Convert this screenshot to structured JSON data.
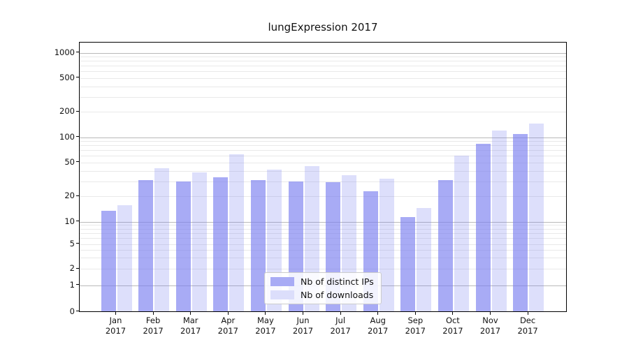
{
  "chart_data": {
    "type": "bar",
    "title": "lungExpression 2017",
    "categories": [
      "Jan",
      "Feb",
      "Mar",
      "Apr",
      "May",
      "Jun",
      "Jul",
      "Aug",
      "Sep",
      "Oct",
      "Nov",
      "Dec"
    ],
    "category_year": "2017",
    "series": [
      {
        "name": "Nb of distinct IPs",
        "color": "rgba(121,126,240,0.65)",
        "legend_swatch_hex": "#a8abf5",
        "values": [
          13,
          30,
          29,
          32,
          30,
          29,
          28,
          22,
          11,
          30,
          80,
          105
        ]
      },
      {
        "name": "Nb of downloads",
        "color": "rgba(121,126,240,0.25)",
        "legend_swatch_hex": "#dcdefb",
        "values": [
          15,
          41,
          37,
          60,
          40,
          44,
          34,
          31,
          14,
          58,
          115,
          140
        ]
      }
    ],
    "yscale": "symlog",
    "ylim": [
      0,
      1000
    ],
    "yticks": [
      0,
      1,
      2,
      5,
      10,
      20,
      50,
      100,
      200,
      500,
      1000
    ],
    "ytick_labels": [
      "0",
      "1",
      "2",
      "5",
      "10",
      "20",
      "50",
      "100",
      "200",
      "500",
      "1000"
    ],
    "grid": true,
    "legend_position": "inside-bottom-center",
    "colors": {
      "major_grid": "#b9b9b9",
      "minor_grid": "#e9e9e9",
      "axis": "#000000",
      "text": "#111111",
      "background": "#ffffff"
    }
  }
}
